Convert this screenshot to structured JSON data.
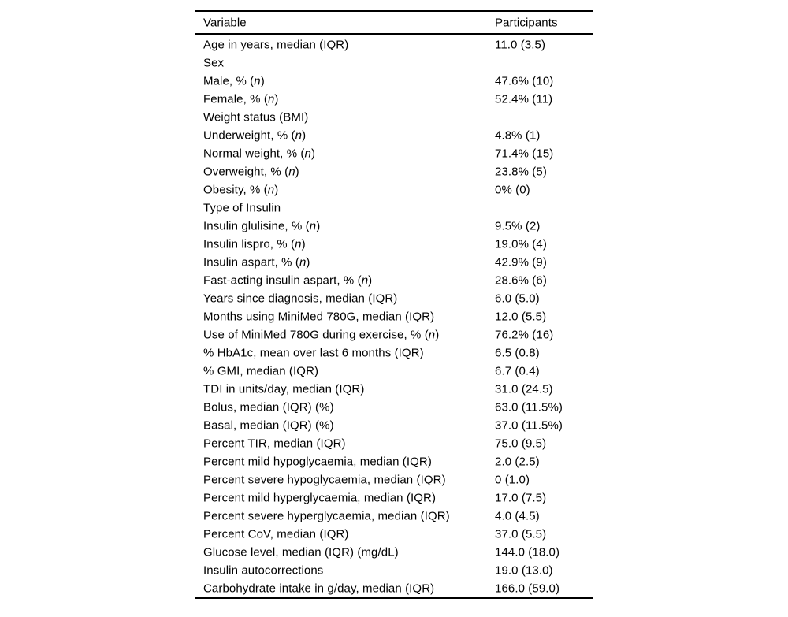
{
  "table": {
    "columns": [
      "Variable",
      "Participants"
    ],
    "italic_symbol": "n",
    "rows": [
      {
        "variable": "Age in years, median (IQR)",
        "value": "11.0 (3.5)"
      },
      {
        "variable": "Sex",
        "value": ""
      },
      {
        "variable": "Male, % (n)",
        "value": "47.6% (10)"
      },
      {
        "variable": "Female, % (n)",
        "value": "52.4% (11)"
      },
      {
        "variable": "Weight status (BMI)",
        "value": ""
      },
      {
        "variable": "Underweight, % (n)",
        "value": "4.8% (1)"
      },
      {
        "variable": "Normal weight, % (n)",
        "value": "71.4% (15)"
      },
      {
        "variable": "Overweight, % (n)",
        "value": "23.8% (5)"
      },
      {
        "variable": "Obesity, % (n)",
        "value": "0% (0)"
      },
      {
        "variable": "Type of Insulin",
        "value": ""
      },
      {
        "variable": "Insulin glulisine, % (n)",
        "value": "9.5% (2)"
      },
      {
        "variable": "Insulin lispro, % (n)",
        "value": "19.0% (4)"
      },
      {
        "variable": "Insulin aspart, % (n)",
        "value": "42.9% (9)"
      },
      {
        "variable": "Fast-acting insulin aspart, % (n)",
        "value": "28.6% (6)"
      },
      {
        "variable": "Years since diagnosis, median (IQR)",
        "value": "6.0 (5.0)"
      },
      {
        "variable": "Months using MiniMed 780G, median (IQR)",
        "value": "12.0 (5.5)"
      },
      {
        "variable": "Use of MiniMed 780G during exercise, % (n)",
        "value": "76.2% (16)"
      },
      {
        "variable": "% HbA1c, mean over last 6 months (IQR)",
        "value": "6.5 (0.8)"
      },
      {
        "variable": "% GMI, median (IQR)",
        "value": "6.7 (0.4)"
      },
      {
        "variable": "TDI in units/day, median (IQR)",
        "value": "31.0 (24.5)"
      },
      {
        "variable": "Bolus, median (IQR) (%)",
        "value": "63.0 (11.5%)"
      },
      {
        "variable": "Basal, median (IQR) (%)",
        "value": "37.0 (11.5%)"
      },
      {
        "variable": "Percent TIR, median (IQR)",
        "value": "75.0 (9.5)"
      },
      {
        "variable": "Percent mild hypoglycaemia, median (IQR)",
        "value": "2.0 (2.5)"
      },
      {
        "variable": "Percent severe hypoglycaemia, median (IQR)",
        "value": "0 (1.0)"
      },
      {
        "variable": "Percent mild hyperglycaemia, median (IQR)",
        "value": "17.0 (7.5)"
      },
      {
        "variable": "Percent severe hyperglycaemia, median (IQR)",
        "value": "4.0 (4.5)"
      },
      {
        "variable": "Percent CoV, median (IQR)",
        "value": "37.0 (5.5)"
      },
      {
        "variable": "Glucose level, median (IQR) (mg/dL)",
        "value": "144.0 (18.0)"
      },
      {
        "variable": "Insulin autocorrections",
        "value": "19.0 (13.0)"
      },
      {
        "variable": "Carbohydrate intake in g/day, median (IQR)",
        "value": "166.0 (59.0)"
      }
    ]
  }
}
